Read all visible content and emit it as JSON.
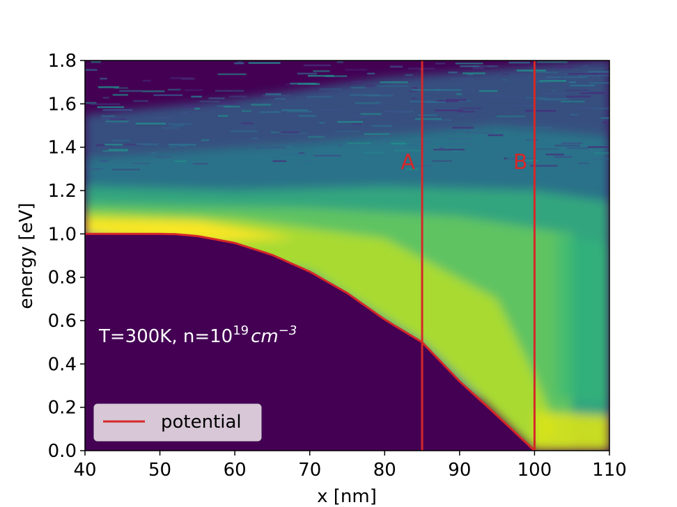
{
  "chart_data": {
    "type": "heatmap",
    "title": "",
    "xlabel": "x [nm]",
    "ylabel": "energy [eV]",
    "xlim": [
      40,
      110
    ],
    "ylim": [
      0.0,
      1.8
    ],
    "xticks": [
      40,
      50,
      60,
      70,
      80,
      90,
      100,
      110
    ],
    "xtick_labels": [
      "40",
      "50",
      "60",
      "70",
      "80",
      "90",
      "100",
      "110"
    ],
    "yticks": [
      0.0,
      0.2,
      0.4,
      0.6,
      0.8,
      1.0,
      1.2,
      1.4,
      1.6,
      1.8
    ],
    "ytick_labels": [
      "0.0",
      "0.2",
      "0.4",
      "0.6",
      "0.8",
      "1.0",
      "1.2",
      "1.4",
      "1.6",
      "1.8"
    ],
    "colormap": "viridis",
    "colors": {
      "background": "#440154",
      "potential": "#d62728",
      "markers": "#d62728",
      "annotation": "#ffffff"
    },
    "potential": {
      "name": "potential",
      "x": [
        40,
        50,
        52,
        55,
        60,
        65,
        70,
        75,
        80,
        85,
        90,
        95,
        100
      ],
      "y": [
        1.0,
        1.0,
        0.999,
        0.99,
        0.958,
        0.903,
        0.826,
        0.727,
        0.605,
        0.5,
        0.32,
        0.162,
        0.0
      ]
    },
    "vertical_markers": [
      {
        "label": "A",
        "x": 85
      },
      {
        "label": "B",
        "x": 100
      }
    ],
    "annotation": {
      "prefix": "T=300K, n=10",
      "exp": "19",
      "unit": "cm",
      "unit_exp": "−3"
    },
    "legend": {
      "position": "lower-left",
      "entries": [
        "potential"
      ]
    },
    "grid": false
  }
}
